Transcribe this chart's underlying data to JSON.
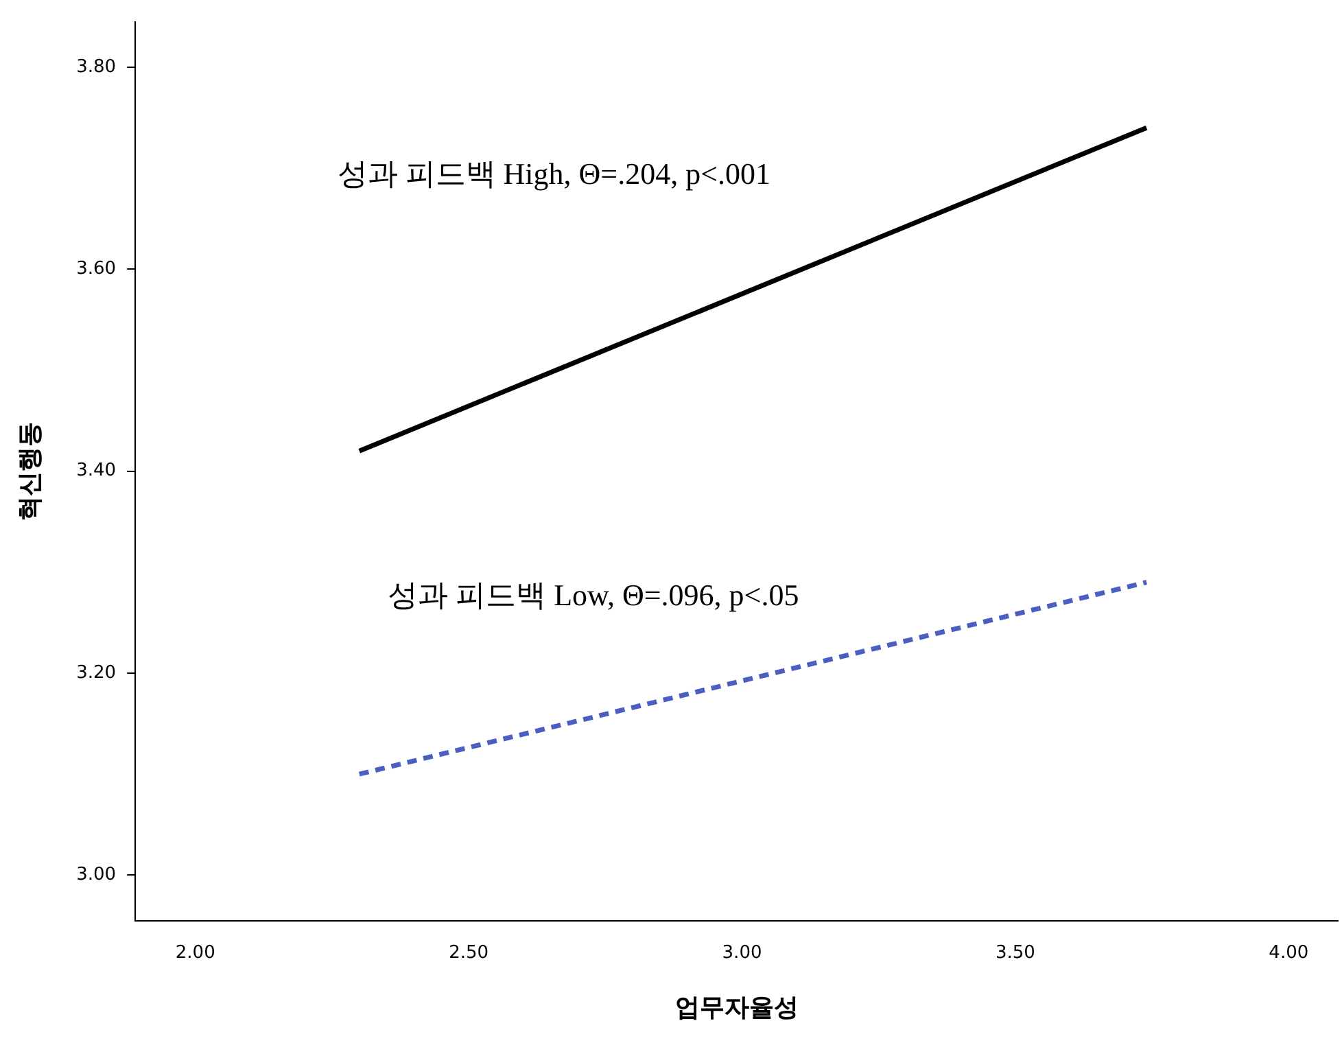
{
  "chart_data": {
    "type": "line",
    "xlabel": "업무자율성",
    "ylabel": "혁신행동",
    "xlim": [
      1.89,
      4.09
    ],
    "ylim": [
      2.955,
      3.845
    ],
    "xticks": [
      {
        "value": 2,
        "label": "2.00"
      },
      {
        "value": 2.5,
        "label": "2.50"
      },
      {
        "value": 3,
        "label": "3.00"
      },
      {
        "value": 3.5,
        "label": "3.50"
      },
      {
        "value": 4,
        "label": "4.00"
      }
    ],
    "yticks": [
      {
        "value": 3,
        "label": "3.00"
      },
      {
        "value": 3.2,
        "label": "3.20"
      },
      {
        "value": 3.4,
        "label": "3.40"
      },
      {
        "value": 3.6,
        "label": "3.60"
      },
      {
        "value": 3.8,
        "label": "3.80"
      }
    ],
    "x": [
      2.3,
      3.74
    ],
    "series": [
      {
        "color": "#000000",
        "values": [
          3.42,
          3.74
        ],
        "line_style": "solid"
      },
      {
        "color": "#4a5fc1",
        "values": [
          3.1,
          3.29
        ],
        "line_style": "dashed"
      }
    ],
    "annotations": [
      "성과 피드백 High, Θ=.204, p<.001",
      "성과 피드백 Low, Θ=.096, p<.05"
    ],
    "grid": false,
    "legend": false,
    "marker": "none"
  }
}
